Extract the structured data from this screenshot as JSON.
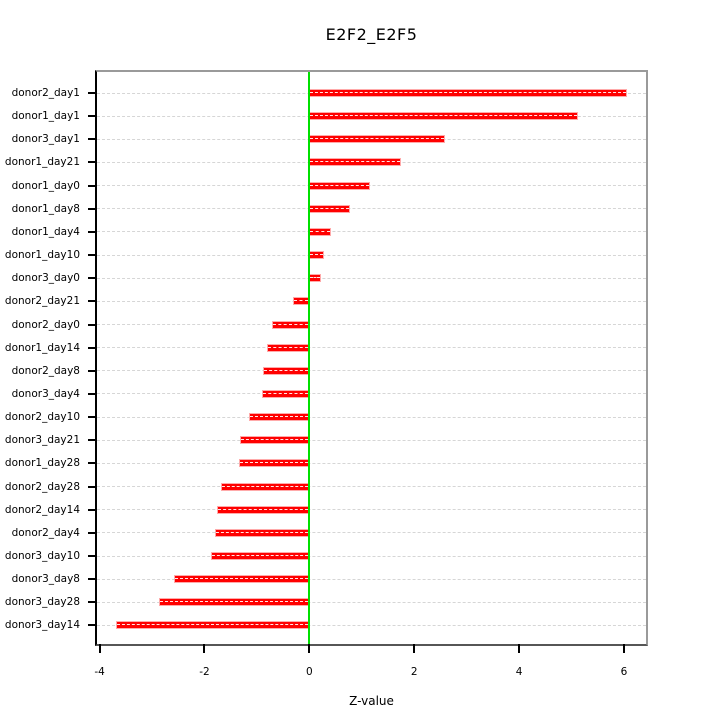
{
  "figure": {
    "background": "#ffffff"
  },
  "chart_data": {
    "type": "bar",
    "orientation": "horizontal",
    "title": "E2F2_E2F5",
    "xlabel": "Z-value",
    "ylabel": "",
    "categories": [
      "donor2_day1",
      "donor1_day1",
      "donor3_day1",
      "donor1_day21",
      "donor1_day0",
      "donor1_day8",
      "donor1_day4",
      "donor1_day10",
      "donor3_day0",
      "donor2_day21",
      "donor2_day0",
      "donor1_day14",
      "donor2_day8",
      "donor3_day4",
      "donor2_day10",
      "donor3_day21",
      "donor1_day28",
      "donor2_day28",
      "donor2_day14",
      "donor2_day4",
      "donor3_day10",
      "donor3_day8",
      "donor3_day28",
      "donor3_day14"
    ],
    "values": [
      6.05,
      5.12,
      2.59,
      1.75,
      1.15,
      0.77,
      0.41,
      0.28,
      0.23,
      -0.32,
      -0.72,
      -0.8,
      -0.88,
      -0.9,
      -1.15,
      -1.32,
      -1.35,
      -1.69,
      -1.77,
      -1.8,
      -1.88,
      -2.59,
      -2.87,
      -3.68
    ],
    "xlim": [
      -4.05,
      6.42
    ],
    "xticks": [
      -4,
      -2,
      0,
      2,
      4,
      6
    ],
    "xtick_labels": [
      "-4",
      "-2",
      "0",
      "2",
      "4",
      "6"
    ],
    "bar_color": "#ff0000",
    "bar_edge_color": "#ffaaaa",
    "zero_line_color": "#00e000",
    "gridline_color": "#d6d6d6",
    "grid": "dashed-horizontal-per-category",
    "legend_position": "none"
  }
}
